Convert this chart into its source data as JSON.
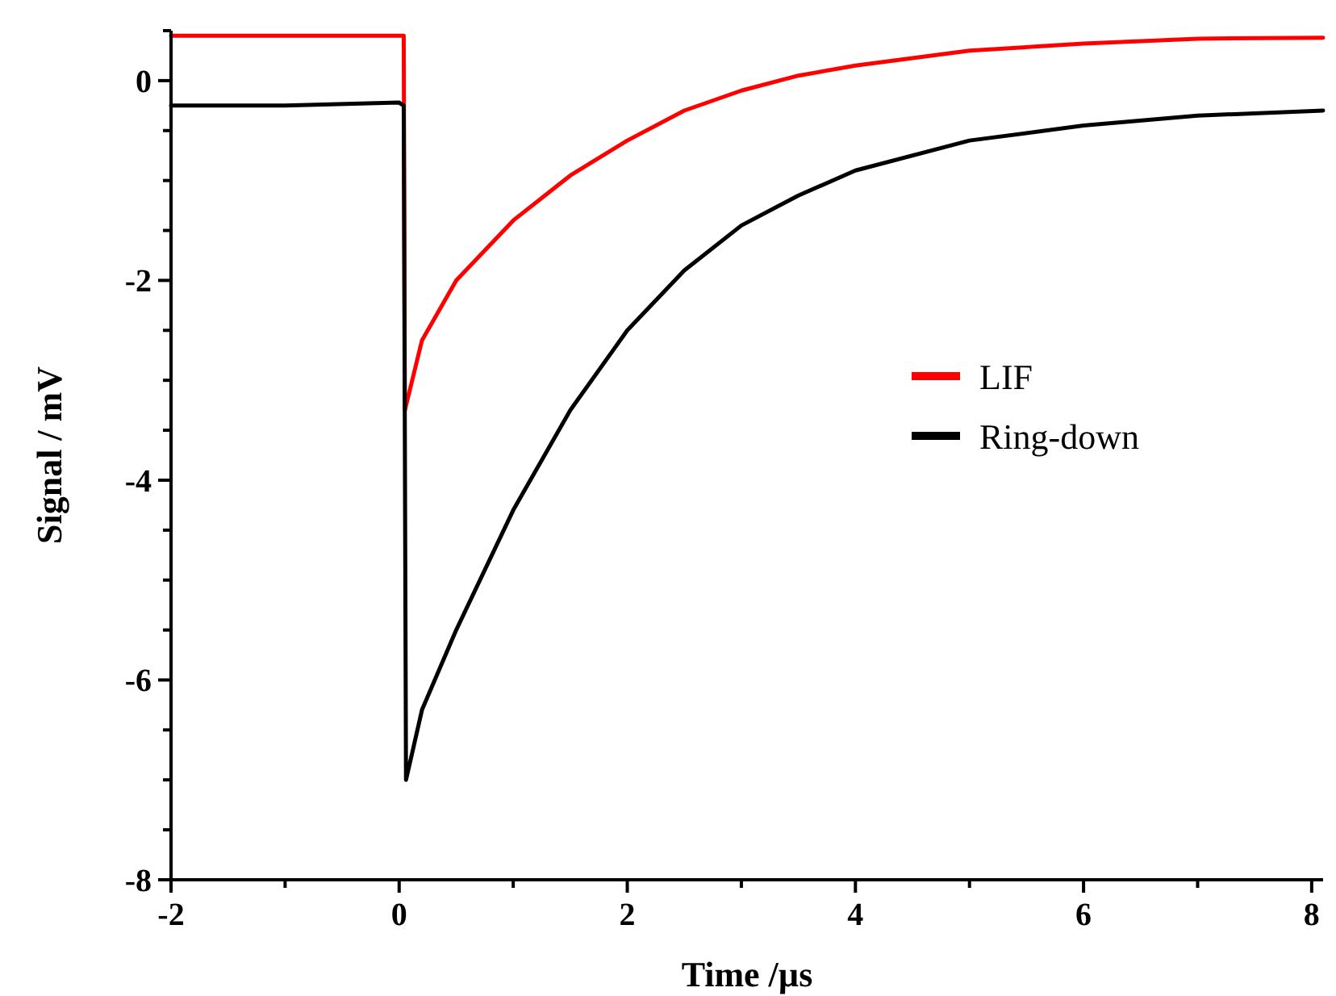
{
  "chart_data": {
    "type": "line",
    "xlabel": "Time /µs",
    "ylabel": "Signal / mV",
    "xlim": [
      -2,
      8.1
    ],
    "ylim": [
      -8,
      0.5
    ],
    "xticks": [
      -2,
      {
        "value": -1,
        "label": null
      },
      0,
      {
        "value": 1,
        "label": null
      },
      2,
      {
        "value": 3,
        "label": null
      },
      4,
      {
        "value": 5,
        "label": null
      },
      6,
      {
        "value": 7,
        "label": null
      },
      8
    ],
    "yticks": [
      -8,
      {
        "value": -7.5,
        "label": null
      },
      {
        "value": -7,
        "label": null
      },
      {
        "value": -6.5,
        "label": null
      },
      -6,
      {
        "value": -5.5,
        "label": null
      },
      {
        "value": -5,
        "label": null
      },
      {
        "value": -4.5,
        "label": null
      },
      -4,
      {
        "value": -3.5,
        "label": null
      },
      {
        "value": -3,
        "label": null
      },
      {
        "value": -2.5,
        "label": null
      },
      -2,
      {
        "value": -1.5,
        "label": null
      },
      {
        "value": -1,
        "label": null
      },
      {
        "value": -0.5,
        "label": null
      },
      0,
      {
        "value": 0.5,
        "label": null
      }
    ],
    "grid": false,
    "legend": "right",
    "line_style": "solid",
    "series": [
      {
        "name": "LIF",
        "color": "#ff0000",
        "x": [
          -2,
          -1,
          0,
          0.04,
          0.05,
          0.2,
          0.5,
          1,
          1.5,
          2,
          2.5,
          3,
          3.5,
          4,
          5,
          6,
          7,
          8.1
        ],
        "values": [
          0.45,
          0.45,
          0.45,
          0.45,
          -3.3,
          -2.6,
          -2.0,
          -1.4,
          -0.95,
          -0.6,
          -0.3,
          -0.1,
          0.05,
          0.15,
          0.3,
          0.37,
          0.42,
          0.43
        ]
      },
      {
        "name": "Ring-down",
        "color": "#000000",
        "x": [
          -2,
          -1,
          0,
          0.04,
          0.06,
          0.2,
          0.5,
          1,
          1.5,
          2,
          2.5,
          3,
          3.5,
          4,
          5,
          6,
          7,
          8.1
        ],
        "values": [
          -0.25,
          -0.25,
          -0.22,
          -0.25,
          -7.0,
          -6.3,
          -5.5,
          -4.3,
          -3.3,
          -2.5,
          -1.9,
          -1.45,
          -1.15,
          -0.9,
          -0.6,
          -0.45,
          -0.35,
          -0.3
        ]
      }
    ]
  }
}
